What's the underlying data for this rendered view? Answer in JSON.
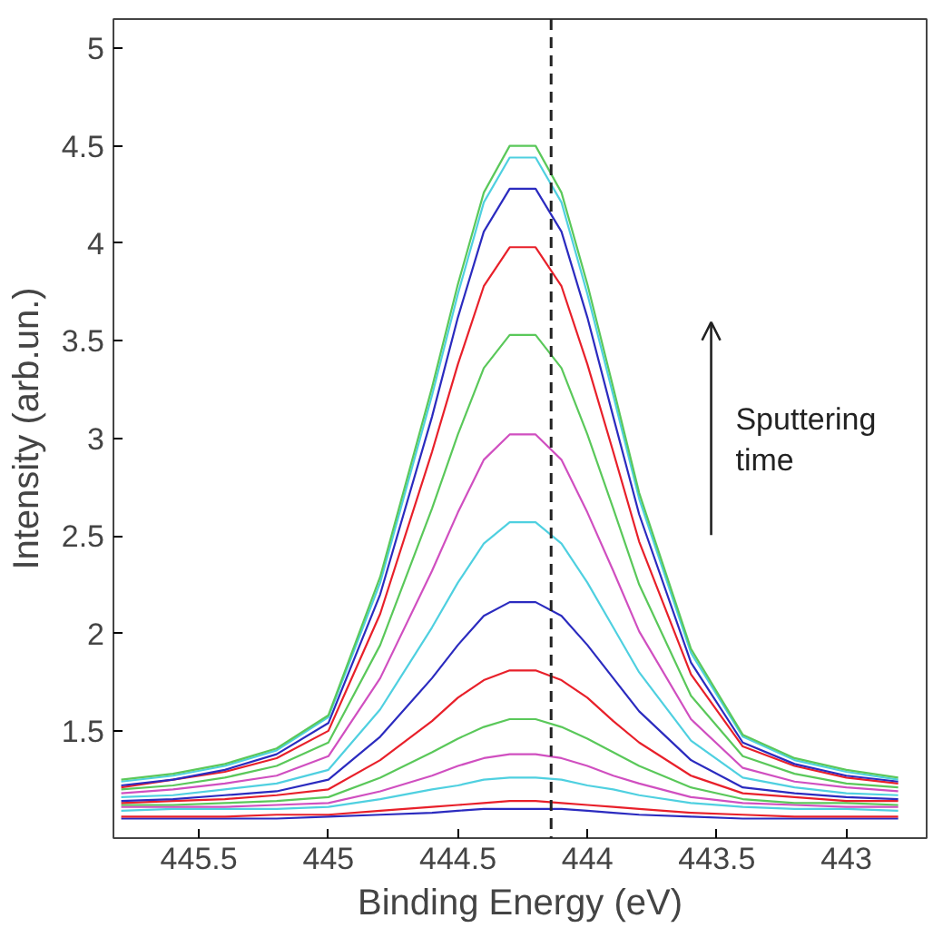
{
  "chart_data": {
    "type": "line",
    "xlabel": "Binding Energy (eV)",
    "ylabel": "Intensity (arb.un.)",
    "xlim": [
      445.83,
      442.69
    ],
    "ylim": [
      0.95,
      5.15
    ],
    "xticks": [
      445.5,
      445,
      444.5,
      444,
      443.5,
      443
    ],
    "yticks": [
      1.5,
      2,
      2.5,
      3,
      3.5,
      4,
      4.5,
      5
    ],
    "grid": false,
    "x": [
      445.8,
      445.6,
      445.4,
      445.2,
      445.0,
      444.8,
      444.6,
      444.5,
      444.4,
      444.3,
      444.2,
      444.1,
      444.0,
      443.9,
      443.8,
      443.6,
      443.4,
      443.2,
      443.0,
      442.8
    ],
    "series": [
      {
        "color": "#2b2bbf",
        "values": [
          1.05,
          1.05,
          1.05,
          1.05,
          1.06,
          1.07,
          1.08,
          1.09,
          1.1,
          1.1,
          1.1,
          1.1,
          1.09,
          1.08,
          1.07,
          1.06,
          1.05,
          1.05,
          1.05,
          1.05
        ]
      },
      {
        "color": "#e8202a",
        "values": [
          1.06,
          1.06,
          1.06,
          1.07,
          1.07,
          1.09,
          1.11,
          1.12,
          1.13,
          1.14,
          1.14,
          1.13,
          1.12,
          1.11,
          1.1,
          1.08,
          1.07,
          1.06,
          1.06,
          1.06
        ]
      },
      {
        "color": "#4fd0e0",
        "values": [
          1.09,
          1.1,
          1.1,
          1.1,
          1.11,
          1.15,
          1.2,
          1.22,
          1.25,
          1.26,
          1.26,
          1.25,
          1.22,
          1.2,
          1.17,
          1.13,
          1.11,
          1.1,
          1.1,
          1.09
        ]
      },
      {
        "color": "#d04fc0",
        "values": [
          1.11,
          1.11,
          1.11,
          1.12,
          1.13,
          1.19,
          1.27,
          1.32,
          1.36,
          1.38,
          1.38,
          1.36,
          1.32,
          1.27,
          1.23,
          1.16,
          1.13,
          1.12,
          1.11,
          1.11
        ]
      },
      {
        "color": "#5ac85a",
        "values": [
          1.12,
          1.12,
          1.13,
          1.14,
          1.16,
          1.26,
          1.39,
          1.46,
          1.52,
          1.56,
          1.56,
          1.52,
          1.46,
          1.39,
          1.32,
          1.21,
          1.15,
          1.13,
          1.13,
          1.12
        ]
      },
      {
        "color": "#e8202a",
        "values": [
          1.13,
          1.14,
          1.15,
          1.17,
          1.2,
          1.35,
          1.55,
          1.67,
          1.76,
          1.81,
          1.81,
          1.76,
          1.67,
          1.55,
          1.44,
          1.27,
          1.18,
          1.16,
          1.14,
          1.14
        ]
      },
      {
        "color": "#2b2bbf",
        "values": [
          1.14,
          1.15,
          1.17,
          1.19,
          1.25,
          1.47,
          1.77,
          1.94,
          2.09,
          2.16,
          2.16,
          2.09,
          1.94,
          1.77,
          1.6,
          1.35,
          1.21,
          1.18,
          1.16,
          1.15
        ]
      },
      {
        "color": "#4fd0e0",
        "values": [
          1.16,
          1.17,
          1.2,
          1.23,
          1.3,
          1.61,
          2.03,
          2.26,
          2.46,
          2.57,
          2.57,
          2.46,
          2.26,
          2.03,
          1.8,
          1.45,
          1.26,
          1.21,
          1.18,
          1.17
        ]
      },
      {
        "color": "#d04fc0",
        "values": [
          1.18,
          1.2,
          1.23,
          1.27,
          1.37,
          1.77,
          2.32,
          2.62,
          2.89,
          3.02,
          3.02,
          2.89,
          2.62,
          2.32,
          2.01,
          1.56,
          1.31,
          1.24,
          1.21,
          1.19
        ]
      },
      {
        "color": "#5ac85a",
        "values": [
          1.2,
          1.22,
          1.26,
          1.32,
          1.44,
          1.94,
          2.64,
          3.02,
          3.36,
          3.53,
          3.53,
          3.36,
          3.02,
          2.64,
          2.25,
          1.68,
          1.37,
          1.28,
          1.23,
          1.21
        ]
      },
      {
        "color": "#e8202a",
        "values": [
          1.21,
          1.25,
          1.29,
          1.36,
          1.5,
          2.1,
          2.93,
          3.38,
          3.78,
          3.98,
          3.98,
          3.78,
          3.38,
          2.93,
          2.47,
          1.79,
          1.42,
          1.32,
          1.26,
          1.23
        ]
      },
      {
        "color": "#2b2bbf",
        "values": [
          1.22,
          1.25,
          1.3,
          1.38,
          1.54,
          2.2,
          3.11,
          3.62,
          4.06,
          4.28,
          4.28,
          4.06,
          3.62,
          3.11,
          2.61,
          1.85,
          1.44,
          1.33,
          1.27,
          1.24
        ]
      },
      {
        "color": "#4fd0e0",
        "values": [
          1.24,
          1.27,
          1.32,
          1.4,
          1.57,
          2.26,
          3.22,
          3.74,
          4.21,
          4.44,
          4.44,
          4.21,
          3.74,
          3.22,
          2.69,
          1.9,
          1.47,
          1.35,
          1.29,
          1.25
        ]
      },
      {
        "color": "#5ac85a",
        "values": [
          1.25,
          1.28,
          1.33,
          1.41,
          1.58,
          2.29,
          3.26,
          3.79,
          4.26,
          4.5,
          4.5,
          4.26,
          3.79,
          3.26,
          2.72,
          1.92,
          1.48,
          1.36,
          1.3,
          1.26
        ]
      }
    ],
    "ref_lines": [
      {
        "axis": "x",
        "value": 444.14,
        "color": "#222222",
        "line_style": "dashed"
      }
    ],
    "annotations": [
      "Sputtering time"
    ]
  }
}
